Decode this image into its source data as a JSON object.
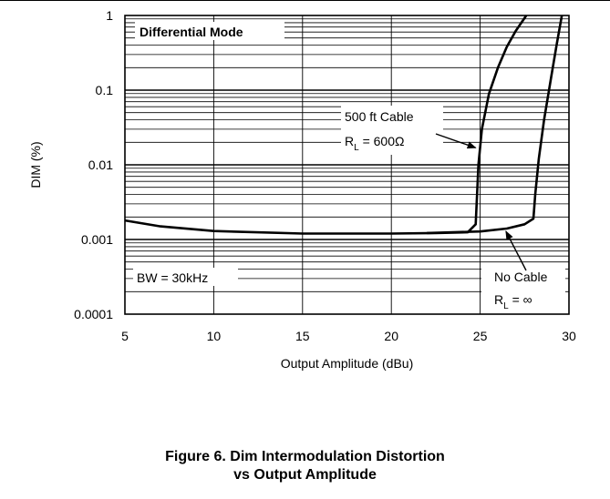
{
  "chart_data": {
    "type": "line",
    "xlabel": "Output Amplitude (dBu)",
    "ylabel": "DIM (%)",
    "xlim": [
      5,
      30
    ],
    "ylim": [
      0.0001,
      1
    ],
    "yscale": "log",
    "grid": true,
    "x_ticks": [
      5,
      10,
      15,
      20,
      25,
      30
    ],
    "x_tick_labels": [
      "5",
      "10",
      "15",
      "20",
      "25",
      "30"
    ],
    "y_ticks": [
      0.0001,
      0.001,
      0.01,
      0.1,
      1
    ],
    "y_tick_labels": [
      "0.0001",
      "0.001",
      "0.01",
      "0.1",
      "1"
    ],
    "series": [
      {
        "id": "cable",
        "x": [
          5,
          7,
          10,
          15,
          20,
          22.5,
          24.3,
          24.75,
          24.9,
          25.1,
          25.5,
          26,
          26.5,
          27,
          27.6
        ],
        "y": [
          0.0018,
          0.0015,
          0.0013,
          0.0012,
          0.0012,
          0.00122,
          0.00125,
          0.0016,
          0.01,
          0.03,
          0.09,
          0.2,
          0.38,
          0.62,
          1.0
        ]
      },
      {
        "id": "no-cable",
        "x": [
          22,
          25,
          26.5,
          27.5,
          28,
          28.1,
          28.3,
          28.6,
          29,
          29.3,
          29.6
        ],
        "y": [
          0.00122,
          0.00128,
          0.0014,
          0.0016,
          0.0019,
          0.004,
          0.012,
          0.04,
          0.15,
          0.4,
          1.0
        ]
      }
    ],
    "annotations": {
      "mode": "Differential Mode",
      "bw": "BW = 30kHz",
      "cable_line1": "500 ft Cable",
      "cable_rl_prefix": "R",
      "cable_rl_sub": "L",
      "cable_rl_value": " = 600Ω",
      "nocable_line1": "No Cable",
      "nocable_rl_prefix": "R",
      "nocable_rl_sub": "L",
      "nocable_rl_value": " = ∞"
    },
    "annotation_points": {
      "cable_arrow_target": [
        24.85,
        0.016
      ],
      "nocable_arrow_target": [
        26.4,
        0.0014
      ]
    }
  },
  "caption": {
    "line1": "Figure 6. Dim Intermodulation Distortion",
    "line2": "vs Output Amplitude"
  }
}
